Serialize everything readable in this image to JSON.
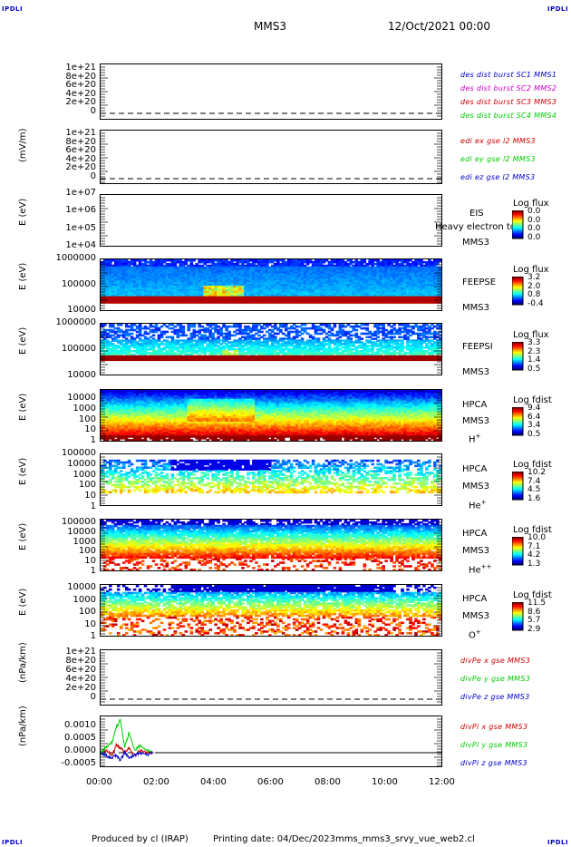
{
  "header": {
    "corner": "IPDLI",
    "spacecraft": "MMS3",
    "date": "12/Oct/2021 00:00"
  },
  "footer": {
    "produced": "Produced by cl (IRAP)",
    "printing": "Printing date: 04/Dec/2023",
    "script": "mms_mms3_srvy_vue_web2.cl"
  },
  "x_ticks": [
    "00:00",
    "02:00",
    "04:00",
    "06:00",
    "08:00",
    "10:00",
    "12:00"
  ],
  "chart_data": [
    {
      "type": "line",
      "id": "des_dist",
      "ylabel": "",
      "yticks": [
        "1e+21",
        "8e+20",
        "6e+20",
        "4e+20",
        "2e+20",
        "0"
      ],
      "series": [
        {
          "name": "des dist burst SC1 MMS1",
          "color": "#0000cc",
          "values": []
        },
        {
          "name": "des dist burst SC2 MMS2",
          "color": "#cc00cc",
          "values": []
        },
        {
          "name": "des dist burst SC3 MMS3",
          "color": "#cc0000",
          "values": []
        },
        {
          "name": "des dist burst SC4 MMS4",
          "color": "#00cc00",
          "values": []
        }
      ]
    },
    {
      "type": "line",
      "id": "edi",
      "ylabel": "(mV/m)",
      "yticks": [
        "1e+21",
        "8e+20",
        "6e+20",
        "4e+20",
        "2e+20",
        "0"
      ],
      "series": [
        {
          "name": "edi ex gse l2 MMS3",
          "color": "#cc0000",
          "values": []
        },
        {
          "name": "edi ey gse l2 MMS3",
          "color": "#00cc00",
          "values": []
        },
        {
          "name": "edi ez gse l2 MMS3",
          "color": "#0000cc",
          "values": []
        }
      ]
    },
    {
      "type": "heatmap",
      "id": "eis",
      "ylabel": "E (eV)",
      "yticks": [
        "1e+07",
        "1e+06",
        "1e+05",
        "1e+04"
      ],
      "instrument": [
        "EIS",
        "MMS3"
      ],
      "overlay_text": "Heavy electron to",
      "colorbar_title": "Log flux",
      "colorbar_ticks": [
        "0.0",
        "0.0",
        "0.0",
        "0.0"
      ]
    },
    {
      "type": "heatmap",
      "id": "feepse",
      "ylabel": "E (eV)",
      "yticks": [
        "1000000",
        "100000",
        "10000"
      ],
      "instrument": [
        "FEEPSE",
        "MMS3"
      ],
      "colorbar_title": "Log flux",
      "colorbar_ticks": [
        "3.2",
        "2.0",
        "0.8",
        "-0.4"
      ]
    },
    {
      "type": "heatmap",
      "id": "feepsi",
      "ylabel": "E (eV)",
      "yticks": [
        "1000000",
        "100000",
        "10000"
      ],
      "instrument": [
        "FEEPSI",
        "MMS3"
      ],
      "colorbar_title": "Log flux",
      "colorbar_ticks": [
        "3.3",
        "2.3",
        "1.4",
        "0.5"
      ]
    },
    {
      "type": "heatmap",
      "id": "hpca_h",
      "ylabel": "E (eV)",
      "yticks": [
        "10000",
        "1000",
        "100",
        "10",
        "1"
      ],
      "instrument": [
        "HPCA",
        "MMS3"
      ],
      "species": "H",
      "charge": "+",
      "colorbar_title": "Log fdist",
      "colorbar_ticks": [
        "9.4",
        "6.4",
        "3.4",
        "0.5"
      ]
    },
    {
      "type": "heatmap",
      "id": "hpca_he",
      "ylabel": "E (eV)",
      "yticks": [
        "100000",
        "10000",
        "1000",
        "100",
        "10",
        "1"
      ],
      "instrument": [
        "HPCA",
        "MMS3"
      ],
      "species": "He",
      "charge": "+",
      "colorbar_title": "Log fdist",
      "colorbar_ticks": [
        "10.2",
        "7.4",
        "4.5",
        "1.6"
      ]
    },
    {
      "type": "heatmap",
      "id": "hpca_hepp",
      "ylabel": "E (eV)",
      "yticks": [
        "100000",
        "10000",
        "1000",
        "100",
        "10",
        "1"
      ],
      "instrument": [
        "HPCA",
        "MMS3"
      ],
      "species": "He",
      "charge": "++",
      "colorbar_title": "Log fdist",
      "colorbar_ticks": [
        "10.0",
        "7.1",
        "4.2",
        "1.3"
      ]
    },
    {
      "type": "heatmap",
      "id": "hpca_o",
      "ylabel": "E (eV)",
      "yticks": [
        "10000",
        "1000",
        "100",
        "10",
        "1"
      ],
      "instrument": [
        "HPCA",
        "MMS3"
      ],
      "species": "O",
      "charge": "+",
      "colorbar_title": "Log fdist",
      "colorbar_ticks": [
        "11.5",
        "8.6",
        "5.7",
        "2.9"
      ]
    },
    {
      "type": "line",
      "id": "divpe",
      "ylabel": "(nPa/km)",
      "yticks": [
        "1e+21",
        "8e+20",
        "6e+20",
        "4e+20",
        "2e+20",
        "0"
      ],
      "series": [
        {
          "name": "divPe x gse MMS3",
          "color": "#cc0000",
          "values": []
        },
        {
          "name": "divPe y gse MMS3",
          "color": "#00cc00",
          "values": []
        },
        {
          "name": "divPe z gse MMS3",
          "color": "#0000cc",
          "values": []
        }
      ]
    },
    {
      "type": "line",
      "id": "divpi",
      "ylabel": "(nPa/km)",
      "yticks": [
        "0.0010",
        "0.0005",
        "0.0000",
        "-0.0005"
      ],
      "ylim": [
        -0.0008,
        0.0014
      ],
      "xlim_hours": [
        0,
        12
      ],
      "series": [
        {
          "name": "divPi x gse MMS3",
          "color": "#cc0000",
          "x_hours": [
            0.0,
            0.2,
            0.4,
            0.55,
            0.7,
            0.85,
            1.0,
            1.2,
            1.4,
            1.6,
            1.85
          ],
          "values": [
            0.0,
            0.0001,
            -0.0001,
            0.0003,
            0.0002,
            0.0,
            0.0002,
            -0.0001,
            0.0001,
            0.0,
            0.0
          ]
        },
        {
          "name": "divPi y gse MMS3",
          "color": "#00cc00",
          "x_hours": [
            0.0,
            0.2,
            0.4,
            0.55,
            0.7,
            0.85,
            1.0,
            1.2,
            1.4,
            1.6,
            1.85
          ],
          "values": [
            0.0,
            0.0002,
            0.0004,
            0.001,
            0.0013,
            0.0002,
            0.0008,
            0.0001,
            0.0003,
            0.0001,
            0.0
          ]
        },
        {
          "name": "divPi z gse MMS3",
          "color": "#0000cc",
          "x_hours": [
            0.0,
            0.2,
            0.4,
            0.55,
            0.7,
            0.85,
            1.0,
            1.2,
            1.4,
            1.6,
            1.85
          ],
          "values": [
            0.0,
            -0.0001,
            -0.0002,
            -0.0001,
            -0.0003,
            0.0,
            -0.0002,
            -0.0001,
            0.0,
            -0.0001,
            0.0
          ]
        }
      ]
    }
  ]
}
